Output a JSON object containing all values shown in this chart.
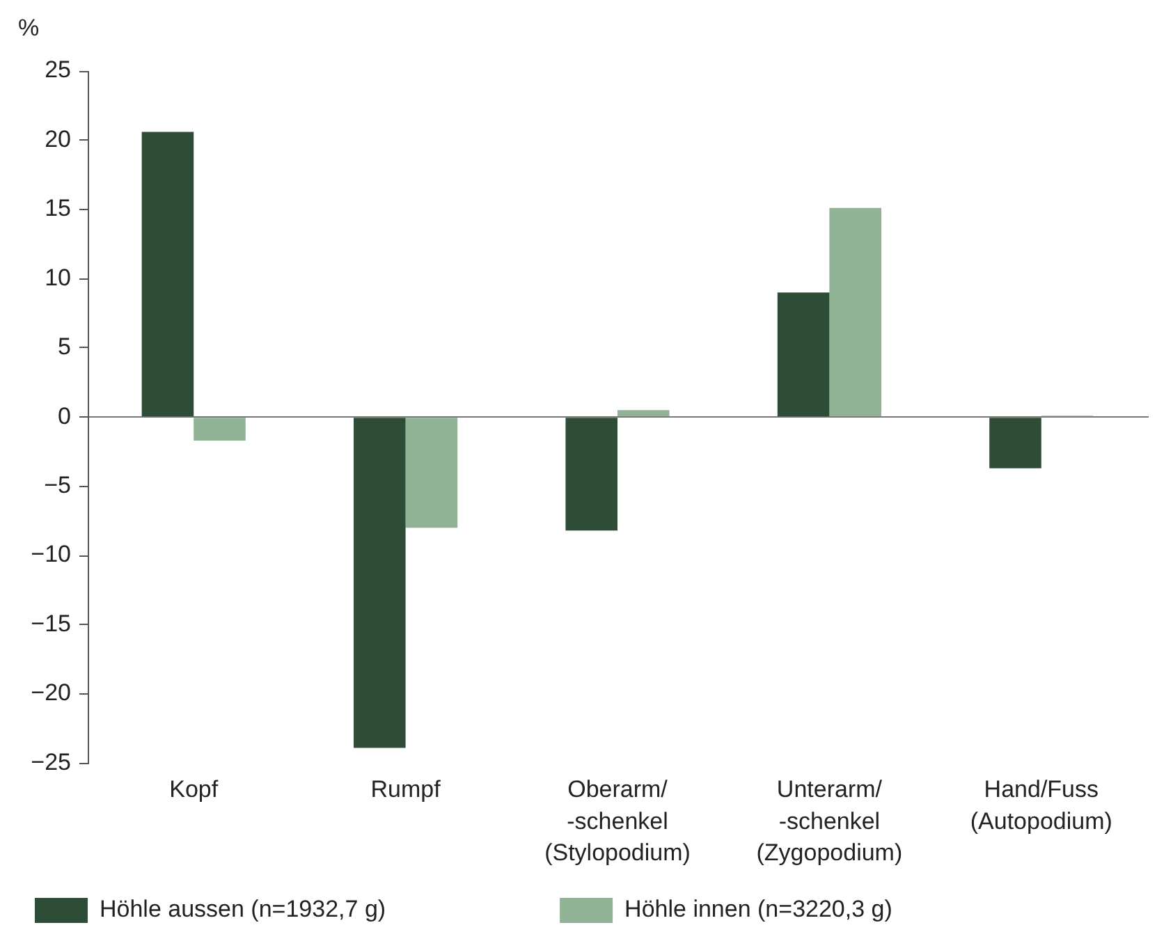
{
  "chart_data": {
    "type": "bar",
    "ylabel": "%",
    "categories": [
      "Kopf",
      "Rumpf",
      "Oberarm/ -schenkel (Stylopodium)",
      "Unterarm/ -schenkel (Zygopodium)",
      "Hand/Fuss (Autopodium)"
    ],
    "series": [
      {
        "name": "Höhle aussen (n=1932,7 g)",
        "color": "#2e4d36",
        "values": [
          20.6,
          -23.9,
          -8.2,
          9.0,
          -3.7
        ]
      },
      {
        "name": "Höhle innen (n=3220,3 g)",
        "color": "#8fb394",
        "values": [
          -1.7,
          -8.0,
          0.5,
          15.1,
          0.1
        ]
      }
    ],
    "ylim": [
      -25,
      25
    ],
    "yticks": [
      {
        "value": -25,
        "label": "−25"
      },
      {
        "value": -20,
        "label": "−20"
      },
      {
        "value": -15,
        "label": "−15"
      },
      {
        "value": -10,
        "label": "−10"
      },
      {
        "value": -5,
        "label": "−5"
      },
      0,
      5,
      10,
      15,
      20,
      25
    ],
    "legend": "bottom"
  }
}
